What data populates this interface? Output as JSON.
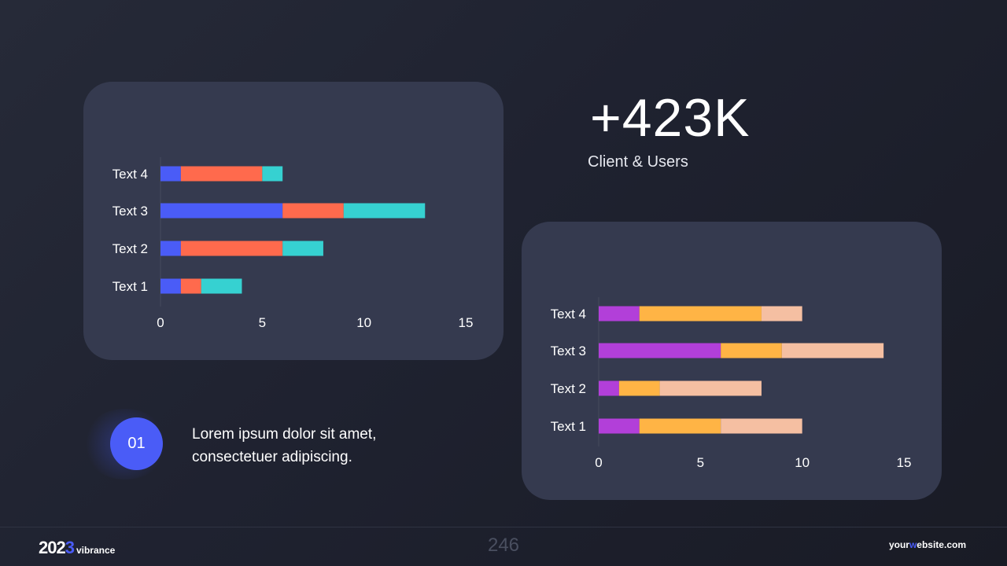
{
  "stat": {
    "value": "+423K",
    "label": "Client & Users"
  },
  "item": {
    "number": "01",
    "text_line1": "Lorem ipsum dolor sit amet,",
    "text_line2": "consectetuer adipiscing."
  },
  "footer": {
    "year_prefix": "202",
    "year_accent": "3",
    "brand": "vibrance",
    "page_number": "246",
    "website_pre": "your",
    "website_accent": "w",
    "website_post": "ebsite.com"
  },
  "colors": {
    "background": "#1f2230",
    "card": "#353a4f",
    "accent": "#4a5cf7",
    "chart1": [
      "#4a5cf7",
      "#ff6a4d",
      "#36d1d1"
    ],
    "chart2": [
      "#b23fd9",
      "#ffb445",
      "#f5bfa2"
    ]
  },
  "chart_data": [
    {
      "type": "bar",
      "orientation": "horizontal",
      "stacked": true,
      "categories": [
        "Text 1",
        "Text 2",
        "Text 3",
        "Text 4"
      ],
      "series": [
        {
          "values": [
            1,
            1,
            6,
            1
          ]
        },
        {
          "values": [
            1,
            5,
            3,
            4
          ]
        },
        {
          "values": [
            2,
            2,
            4,
            1
          ]
        }
      ],
      "xlim": [
        0,
        15
      ],
      "xticks": [
        "0",
        "5",
        "10",
        "15"
      ],
      "grid": false,
      "legend": "none"
    },
    {
      "type": "bar",
      "orientation": "horizontal",
      "stacked": true,
      "categories": [
        "Text 1",
        "Text 2",
        "Text 3",
        "Text 4"
      ],
      "series": [
        {
          "values": [
            2,
            1,
            6,
            2
          ]
        },
        {
          "values": [
            4,
            2,
            3,
            6
          ]
        },
        {
          "values": [
            4,
            5,
            5,
            2
          ]
        }
      ],
      "xlim": [
        0,
        15
      ],
      "xticks": [
        "0",
        "5",
        "10",
        "15"
      ],
      "grid": false,
      "legend": "none"
    }
  ]
}
